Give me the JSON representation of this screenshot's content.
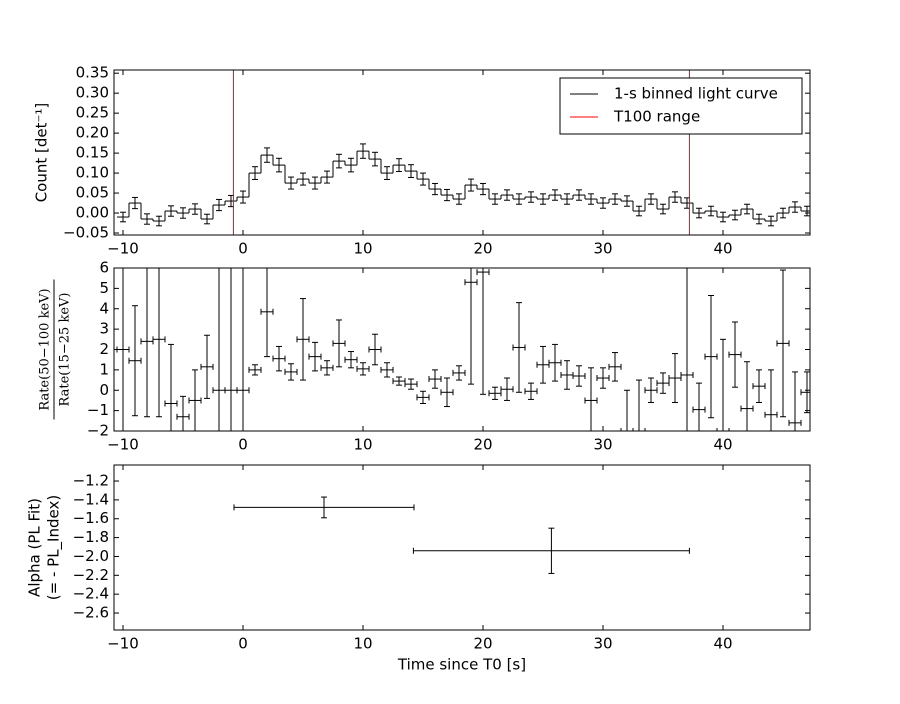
{
  "chart_data": [
    {
      "type": "step",
      "y_label": "Count [det⁻¹]",
      "xlim": [
        -10.75,
        47.25
      ],
      "xticks": [
        {
          "value": -10,
          "label": "−10"
        },
        0,
        10,
        20,
        30,
        40
      ],
      "ylim": [
        -0.055,
        0.358
      ],
      "yticks": [
        {
          "value": -0.05,
          "label": "−0.05"
        },
        {
          "value": 0,
          "label": "0.00"
        },
        0.05,
        {
          "value": 0.1,
          "label": "0.10"
        },
        0.15,
        {
          "value": 0.2,
          "label": "0.20"
        },
        0.25,
        {
          "value": 0.3,
          "label": "0.30"
        },
        0.35
      ],
      "legend": "upper right",
      "bin_width": 1,
      "series": [
        {
          "name": "1-s binned light curve",
          "color": "#000000",
          "x": [
            -10,
            -9,
            -8,
            -7,
            -6,
            -5,
            -4,
            -3,
            -2,
            -1,
            0,
            1,
            2,
            3,
            4,
            5,
            6,
            7,
            8,
            9,
            10,
            11,
            12,
            13,
            14,
            15,
            16,
            17,
            18,
            19,
            20,
            21,
            22,
            23,
            24,
            25,
            26,
            27,
            28,
            29,
            30,
            31,
            32,
            33,
            34,
            35,
            36,
            37,
            38,
            39,
            40,
            41,
            42,
            43,
            44,
            45,
            46,
            47
          ],
          "values": [
            -0.01,
            0.025,
            -0.015,
            -0.02,
            0.005,
            0.0,
            0.01,
            -0.015,
            0.02,
            0.03,
            0.04,
            0.1,
            0.145,
            0.12,
            0.075,
            0.085,
            0.075,
            0.09,
            0.13,
            0.12,
            0.155,
            0.135,
            0.1,
            0.12,
            0.105,
            0.085,
            0.06,
            0.045,
            0.035,
            0.07,
            0.06,
            0.035,
            0.045,
            0.035,
            0.04,
            0.035,
            0.045,
            0.035,
            0.045,
            0.035,
            0.025,
            0.035,
            0.03,
            0.005,
            0.035,
            0.01,
            0.04,
            0.025,
            0.0,
            0.005,
            -0.01,
            -0.005,
            0.01,
            -0.015,
            -0.02,
            0.0,
            0.015,
            0.005
          ],
          "errors": [
            0.012,
            0.014,
            0.013,
            0.012,
            0.013,
            0.013,
            0.013,
            0.012,
            0.014,
            0.014,
            0.015,
            0.016,
            0.018,
            0.017,
            0.015,
            0.015,
            0.015,
            0.015,
            0.017,
            0.017,
            0.018,
            0.017,
            0.016,
            0.016,
            0.016,
            0.015,
            0.014,
            0.014,
            0.013,
            0.015,
            0.014,
            0.013,
            0.013,
            0.013,
            0.013,
            0.013,
            0.013,
            0.013,
            0.013,
            0.013,
            0.013,
            0.013,
            0.013,
            0.012,
            0.013,
            0.012,
            0.013,
            0.013,
            0.012,
            0.012,
            0.012,
            0.012,
            0.012,
            0.012,
            0.012,
            0.012,
            0.013,
            0.012
          ]
        }
      ],
      "vlines": {
        "name": "T100 range",
        "color": "#ff0000",
        "x": [
          -0.8,
          37.2
        ]
      }
    },
    {
      "type": "errorbar",
      "y_label_numerator": "Rate(50−100 keV)",
      "y_label_denominator": "Rate(15−25 keV)",
      "xlim": [
        -10.75,
        47.25
      ],
      "xticks": [
        {
          "value": -10,
          "label": "−10"
        },
        0,
        10,
        20,
        30,
        40
      ],
      "ylim": [
        -2,
        6
      ],
      "yticks": [
        {
          "value": -2,
          "label": "−2"
        },
        {
          "value": -1,
          "label": "−1"
        },
        0,
        1,
        2,
        3,
        4,
        5,
        6
      ],
      "xerr": 0.5,
      "series": [
        {
          "color": "#000000",
          "x": [
            -10,
            -9,
            -8,
            -7,
            -6,
            -5,
            -4,
            -3,
            -2,
            -1,
            0,
            1,
            2,
            3,
            4,
            5,
            6,
            7,
            8,
            9,
            10,
            11,
            12,
            13,
            14,
            15,
            16,
            17,
            18,
            19,
            20,
            21,
            22,
            23,
            24,
            25,
            26,
            27,
            28,
            29,
            30,
            31,
            32,
            33,
            34,
            35,
            36,
            37,
            38,
            39,
            40,
            41,
            42,
            43,
            44,
            45,
            46,
            47
          ],
          "values": [
            2,
            1.45,
            2.4,
            2.5,
            -0.65,
            -1.3,
            -0.5,
            1.15,
            0,
            0,
            0,
            1.0,
            3.85,
            1.55,
            0.9,
            2.5,
            1.65,
            1.1,
            2.3,
            1.5,
            1.05,
            2.0,
            1.0,
            0.45,
            0.3,
            -0.35,
            0.55,
            -0.1,
            0.85,
            5.3,
            5.8,
            -0.15,
            0.05,
            2.1,
            -0.05,
            1.25,
            1.35,
            0.75,
            0.7,
            -0.5,
            0.6,
            1.15,
            -2.0,
            -2.0,
            0.0,
            0.35,
            0.6,
            0.75,
            -0.95,
            1.65,
            -2.0,
            1.75,
            -0.9,
            0.2,
            -1.2,
            2.3,
            -1.6,
            -0.1
          ],
          "errors": [
            10,
            2.7,
            3.7,
            3.8,
            2.9,
            1.0,
            1.5,
            1.55,
            10,
            10,
            10,
            0.25,
            2.2,
            0.6,
            0.4,
            2.0,
            0.7,
            0.35,
            1.15,
            0.4,
            0.3,
            0.75,
            0.35,
            0.2,
            0.25,
            0.3,
            0.45,
            0.7,
            0.35,
            5,
            6,
            0.3,
            0.55,
            2.2,
            0.4,
            0.9,
            0.9,
            0.7,
            0.5,
            1.6,
            0.5,
            0.7,
            2,
            2.5,
            0.6,
            0.5,
            1.2,
            10,
            1.3,
            3,
            4.5,
            1.6,
            2.3,
            0.8,
            2.2,
            3.6,
            2.5,
            1.0
          ]
        }
      ]
    },
    {
      "type": "errorbar",
      "y_label": [
        "Alpha (PL Fit)",
        "(= - PL_Index)"
      ],
      "x_label": "Time since T0 [s]",
      "xlim": [
        -10.75,
        47.25
      ],
      "xticks": [
        {
          "value": -10,
          "label": "−10"
        },
        0,
        10,
        20,
        30,
        40
      ],
      "ylim": [
        -2.78,
        -1.03
      ],
      "yticks": [
        {
          "value": -2.6,
          "label": "−2.6"
        },
        {
          "value": -2.4,
          "label": "−2.4"
        },
        {
          "value": -2.2,
          "label": "−2.2"
        },
        {
          "value": -2.0,
          "label": "−2.0"
        },
        {
          "value": -1.8,
          "label": "−1.8"
        },
        {
          "value": -1.6,
          "label": "−1.6"
        },
        {
          "value": -1.4,
          "label": "−1.4"
        },
        {
          "value": -1.2,
          "label": "−1.2"
        }
      ],
      "series": [
        {
          "color": "#000000",
          "x": [
            6.75,
            25.7
          ],
          "xerr": [
            7.5,
            11.5
          ],
          "values": [
            -1.48,
            -1.94
          ],
          "errors": [
            0.11,
            0.24
          ]
        }
      ]
    }
  ]
}
